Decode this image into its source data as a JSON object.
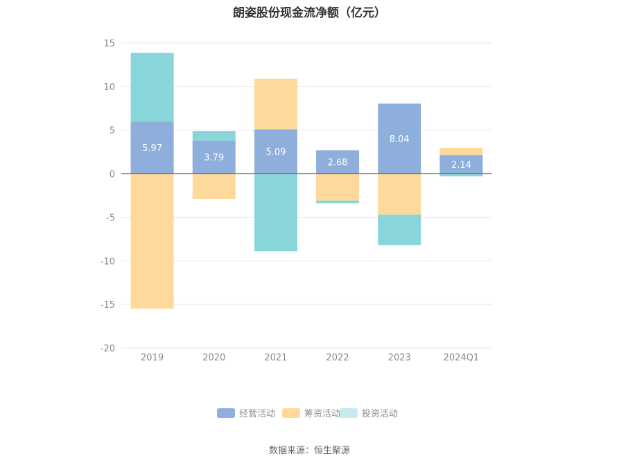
{
  "chart_data": {
    "type": "bar",
    "stacked": true,
    "title": "朗姿股份现金流净额（亿元）",
    "categories": [
      "2019",
      "2020",
      "2021",
      "2022",
      "2023",
      "2024Q1"
    ],
    "series": [
      {
        "name": "经营活动",
        "color": "#8eaedb",
        "values": [
          5.97,
          3.79,
          5.09,
          2.68,
          8.04,
          2.14
        ]
      },
      {
        "name": "筹资活动",
        "color": "#ffd99b",
        "values": [
          -15.5,
          -2.9,
          5.8,
          -3.1,
          -4.7,
          0.8
        ]
      },
      {
        "name": "投资活动",
        "color": "#88d6da",
        "values": [
          7.9,
          1.1,
          -8.9,
          -0.3,
          -3.5,
          -0.3
        ]
      }
    ],
    "data_labels": [
      "5.97",
      "3.79",
      "5.09",
      "2.68",
      "8.04",
      "2.14"
    ],
    "ylim": [
      -20,
      15
    ],
    "yticks": [
      15,
      10,
      5,
      0,
      -5,
      -10,
      -15,
      -20
    ],
    "grid": true,
    "legend_position": "bottom"
  },
  "legend": [
    {
      "label": "经营活动",
      "color": "#8eaedb"
    },
    {
      "label": "筹资活动",
      "color": "#ffd99b"
    },
    {
      "label": "投资活动",
      "color": "#c4ecee"
    }
  ],
  "source": "数据来源：恒生聚源"
}
